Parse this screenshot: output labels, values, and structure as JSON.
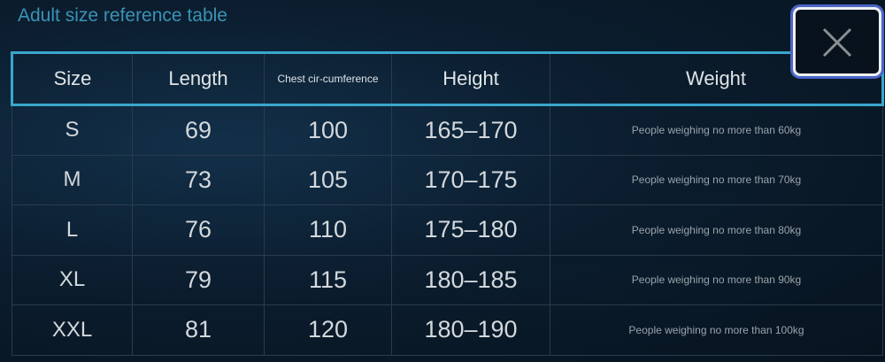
{
  "title": "Adult size reference table",
  "close_icon": "close-icon",
  "table": {
    "headers": [
      "Size",
      "Length",
      "Chest cir-cumference",
      "Height",
      "Weight"
    ],
    "rows": [
      [
        "S",
        "69",
        "100",
        "165–170",
        "People weighing no more than 60kg"
      ],
      [
        "M",
        "73",
        "105",
        "170–175",
        "People weighing no more than 70kg"
      ],
      [
        "L",
        "76",
        "110",
        "175–180",
        "People weighing no more than 80kg"
      ],
      [
        "XL",
        "79",
        "115",
        "180–185",
        "People weighing no more than 90kg"
      ],
      [
        "XXL",
        "81",
        "120",
        "180–190",
        "People weighing no more than 100kg"
      ]
    ]
  },
  "colors": {
    "accent": "#3aa6cc",
    "title": "#3a93b6",
    "focus_ring": "#4a66c8"
  }
}
